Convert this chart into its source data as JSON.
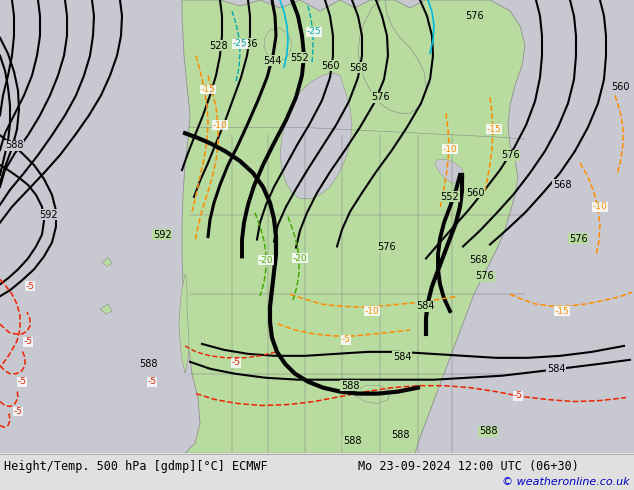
{
  "title_left": "Height/Temp. 500 hPa [gdmp][°C] ECMWF",
  "title_right": "Mo 23-09-2024 12:00 UTC (06+30)",
  "copyright": "© weatheronline.co.uk",
  "bg_color": "#c8c8d0",
  "land_color": "#b8dca0",
  "bottom_bar_color": "#e0e0e0",
  "figsize": [
    6.34,
    4.9
  ],
  "dpi": 100
}
